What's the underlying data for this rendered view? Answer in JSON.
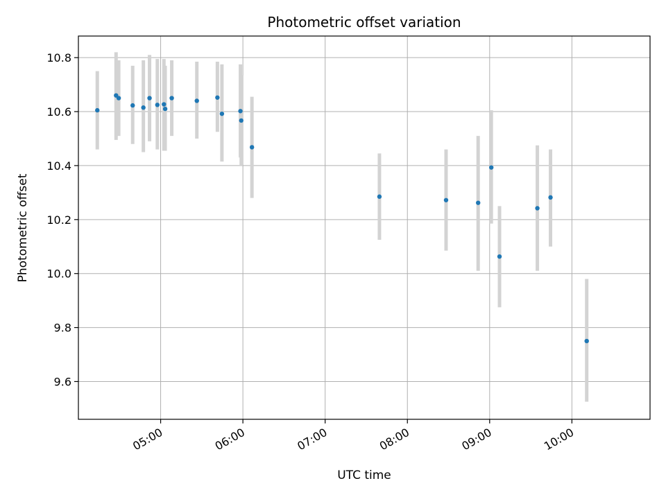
{
  "chart_data": {
    "type": "scatter",
    "title": "Photometric offset variation",
    "xlabel": "UTC time",
    "ylabel": "Photometric offset",
    "grid": true,
    "xlim_hours": [
      4.0,
      10.95
    ],
    "ylim": [
      9.46,
      10.88
    ],
    "x_ticks": [
      {
        "label": "05:00",
        "value": 5
      },
      {
        "label": "06:00",
        "value": 6
      },
      {
        "label": "07:00",
        "value": 7
      },
      {
        "label": "08:00",
        "value": 8
      },
      {
        "label": "09:00",
        "value": 9
      },
      {
        "label": "10:00",
        "value": 10
      }
    ],
    "y_ticks": [
      {
        "label": "9.6",
        "value": 9.6
      },
      {
        "label": "9.8",
        "value": 9.8
      },
      {
        "label": "10.0",
        "value": 10.0
      },
      {
        "label": "10.2",
        "value": 10.2
      },
      {
        "label": "10.4",
        "value": 10.4
      },
      {
        "label": "10.6",
        "value": 10.6
      },
      {
        "label": "10.8",
        "value": 10.8
      }
    ],
    "series": [
      {
        "name": "Photometric offset",
        "marker_color": "#1f77b4",
        "errorbar_color": "#d3d3d3",
        "points": [
          {
            "x": 4.23,
            "y": 10.605,
            "low": 10.46,
            "high": 10.75
          },
          {
            "x": 4.458,
            "y": 10.66,
            "low": 10.495,
            "high": 10.82
          },
          {
            "x": 4.49,
            "y": 10.65,
            "low": 10.51,
            "high": 10.79
          },
          {
            "x": 4.66,
            "y": 10.623,
            "low": 10.48,
            "high": 10.77
          },
          {
            "x": 4.79,
            "y": 10.615,
            "low": 10.45,
            "high": 10.79
          },
          {
            "x": 4.865,
            "y": 10.65,
            "low": 10.49,
            "high": 10.81
          },
          {
            "x": 4.96,
            "y": 10.625,
            "low": 10.46,
            "high": 10.795
          },
          {
            "x": 5.04,
            "y": 10.627,
            "low": 10.455,
            "high": 10.795
          },
          {
            "x": 5.055,
            "y": 10.61,
            "low": 10.455,
            "high": 10.77
          },
          {
            "x": 5.135,
            "y": 10.65,
            "low": 10.51,
            "high": 10.79
          },
          {
            "x": 5.44,
            "y": 10.64,
            "low": 10.5,
            "high": 10.785
          },
          {
            "x": 5.69,
            "y": 10.652,
            "low": 10.525,
            "high": 10.785
          },
          {
            "x": 5.745,
            "y": 10.592,
            "low": 10.415,
            "high": 10.775
          },
          {
            "x": 5.97,
            "y": 10.602,
            "low": 10.43,
            "high": 10.775
          },
          {
            "x": 5.98,
            "y": 10.567,
            "low": 10.4,
            "high": 10.735
          },
          {
            "x": 6.11,
            "y": 10.468,
            "low": 10.28,
            "high": 10.655
          },
          {
            "x": 7.66,
            "y": 10.285,
            "low": 10.125,
            "high": 10.445
          },
          {
            "x": 8.47,
            "y": 10.272,
            "low": 10.085,
            "high": 10.46
          },
          {
            "x": 8.86,
            "y": 10.262,
            "low": 10.01,
            "high": 10.51
          },
          {
            "x": 9.02,
            "y": 10.393,
            "low": 10.185,
            "high": 10.605
          },
          {
            "x": 9.12,
            "y": 10.063,
            "low": 9.875,
            "high": 10.25
          },
          {
            "x": 9.58,
            "y": 10.242,
            "low": 10.01,
            "high": 10.475
          },
          {
            "x": 9.74,
            "y": 10.282,
            "low": 10.1,
            "high": 10.46
          },
          {
            "x": 10.18,
            "y": 9.75,
            "low": 9.525,
            "high": 9.98
          }
        ]
      }
    ]
  }
}
